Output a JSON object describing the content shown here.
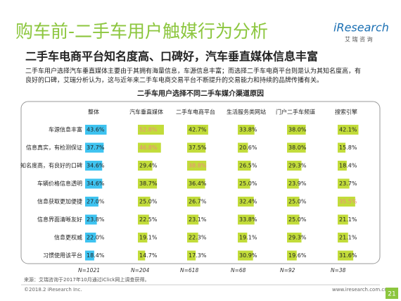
{
  "header": {
    "title": "购车前-二手车用户触媒行为分析",
    "logo": "iResearch",
    "logo_sub": "艾 瑞 咨 询"
  },
  "subtitle": "二手车电商平台知名度高、口碑好，汽车垂直媒体信息丰富",
  "paragraph": [
    "二手车用户选择汽车垂直媒体主要由于其拥有海量信息，车源信息丰富；而选择二手车电商平台则是认为其知名度高，有",
    "良好的口碑，艾瑞分析认为，这与近年来二手车电商交易平台不断提升的交易能力和持续的品牌传播有关。"
  ],
  "table": {
    "title": "二手车用户选择不同二手车媒介渠道原因",
    "columns": [
      "整体",
      "汽车垂直媒体",
      "二手车电商平台",
      "生活服务类网站",
      "门户二手车频道",
      "搜索引擎"
    ],
    "rows": [
      {
        "label": "车源信息丰富",
        "values": [
          43.6,
          52.8,
          42.7,
          33.8,
          38.0,
          42.1
        ],
        "value_labels": [
          "43.6%",
          "52.8%",
          "42.7%",
          "33.8%",
          "38.0%",
          "42.1%"
        ]
      },
      {
        "label": "信息真实，有检测保证",
        "values": [
          37.7,
          46.8,
          37.5,
          20.6,
          38.0,
          15.8
        ],
        "value_labels": [
          "37.7%",
          "46.8%",
          "37.5%",
          "20.6%",
          "38.0%",
          "15.8%"
        ]
      },
      {
        "label": "知名度高，有良好的口碑",
        "values": [
          34.6,
          29.4,
          38.8,
          26.5,
          29.3,
          18.4
        ],
        "value_labels": [
          "34.6%",
          "29.4%",
          "38.8%",
          "26.5%",
          "29.3%",
          "18.4%"
        ]
      },
      {
        "label": "车辆价格信息透明",
        "values": [
          34.6,
          38.7,
          36.4,
          25.0,
          23.9,
          23.7
        ],
        "value_labels": [
          "34.6%",
          "38.7%",
          "36.4%",
          "25.0%",
          "23.9%",
          "23.7%"
        ]
      },
      {
        "label": "信息获取更加便捷",
        "values": [
          27.0,
          25.0,
          26.7,
          32.4,
          25.0,
          35.5
        ],
        "value_labels": [
          "27.0%",
          "25.0%",
          "26.7%",
          "32.4%",
          "25.0%",
          "35.5%"
        ]
      },
      {
        "label": "信息界面清晰友好",
        "values": [
          23.8,
          22.5,
          23.1,
          33.8,
          25.0,
          21.1
        ],
        "value_labels": [
          "23.8%",
          "22.5%",
          "23.1%",
          "33.8%",
          "25.0%",
          "21.1%"
        ]
      },
      {
        "label": "信息更权威",
        "values": [
          22.0,
          19.1,
          22.3,
          19.1,
          29.3,
          21.1
        ],
        "value_labels": [
          "22.0%",
          "19.1%",
          "22.3%",
          "19.1%",
          "29.3%",
          "21.1%"
        ]
      },
      {
        "label": "习惯使用该平台",
        "values": [
          18.4,
          14.7,
          17.3,
          30.9,
          19.6,
          31.6
        ],
        "value_labels": [
          "18.4%",
          "14.7%",
          "17.3%",
          "30.9%",
          "19.6%",
          "31.6%"
        ]
      }
    ],
    "sample_sizes": [
      "N=1021",
      "N=204",
      "N=618",
      "N=68",
      "N=92",
      "N=38"
    ],
    "highlight": [
      [
        0,
        1
      ],
      [
        1,
        1
      ],
      [
        2,
        2
      ],
      [
        4,
        5
      ]
    ],
    "colors": {
      "overall": "#3ec3f0",
      "channel": "#c2dc3a",
      "highlight_text": "#ee8a80"
    }
  },
  "source": "来源：艾瑞咨询于2017年10月通过iClick网上调查获得。",
  "footer": {
    "copyright": "©2018.2 iResearch Inc.",
    "url": "www.iresearch.com.cn",
    "page": "21"
  }
}
